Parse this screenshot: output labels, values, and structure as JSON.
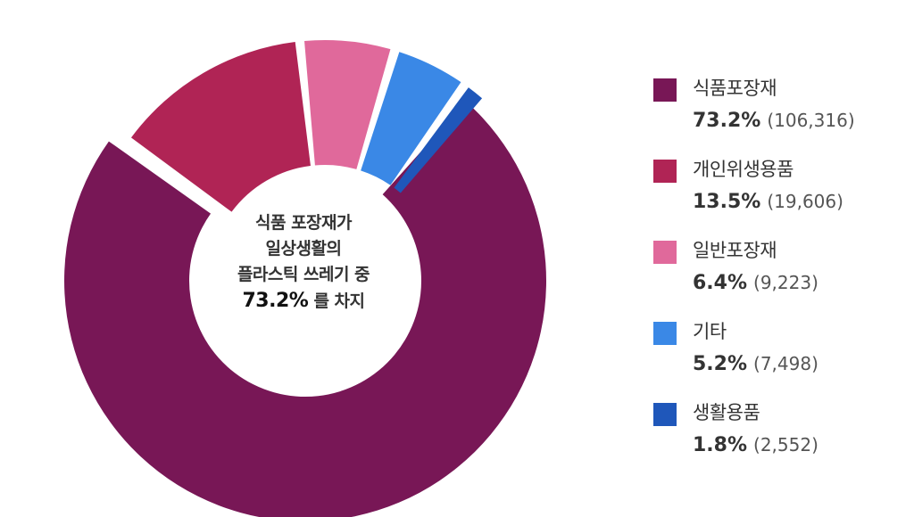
{
  "center": {
    "line1": "식품 포장재가",
    "line2": "일상생활의",
    "line3": "플라스틱 쓰레기 중",
    "pct": "73.2%",
    "after": "를 차지"
  },
  "chart_data": {
    "type": "pie",
    "donut": true,
    "legend_position": "right",
    "slices": [
      {
        "name": "식품포장재",
        "pct_label": "73.2%",
        "count_label": "(106,316)",
        "value": 106316,
        "color": "#781756"
      },
      {
        "name": "개인위생용품",
        "pct_label": "13.5%",
        "count_label": "(19,606)",
        "value": 19606,
        "color": "#B02455"
      },
      {
        "name": "일반포장재",
        "pct_label": "6.4%",
        "count_label": "(9,223)",
        "value": 9223,
        "color": "#E0699B"
      },
      {
        "name": "기타",
        "pct_label": "5.2%",
        "count_label": "(7,498)",
        "value": 7498,
        "color": "#3A88E6"
      },
      {
        "name": "생활용품",
        "pct_label": "1.8%",
        "count_label": "(2,552)",
        "value": 2552,
        "color": "#1F57BA"
      }
    ]
  }
}
